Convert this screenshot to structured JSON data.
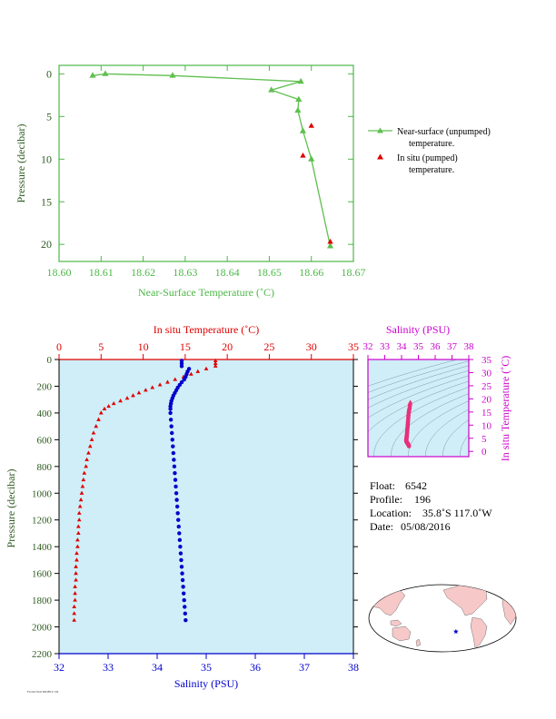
{
  "figure": {
    "footnote": "FLOAT 6542 PROFILE 196"
  },
  "chart_data": [
    {
      "id": "near-surface",
      "type": "scatter",
      "xlabel": "Near-Surface Temperature (˚C)",
      "ylabel": "Pressure (decibar)",
      "xlim": [
        18.6,
        18.67
      ],
      "ylim": [
        22,
        -1
      ],
      "xticks": [
        18.6,
        18.61,
        18.62,
        18.63,
        18.64,
        18.65,
        18.66,
        18.67
      ],
      "xtick_labels": [
        "18.60",
        "18.61",
        "18.62",
        "18.63",
        "18.64",
        "18.65",
        "18.66",
        "18.67"
      ],
      "yticks": [
        0,
        5,
        10,
        15,
        20
      ],
      "ytick_labels": [
        "0",
        "5",
        "10",
        "15",
        "20"
      ],
      "colors": {
        "axis": "#4db848",
        "unpumped": "#5fbf4f",
        "pumped": "#e00000",
        "ylabel": "#2d5a1e"
      },
      "series": [
        {
          "name": "Near-surface (unpumped)",
          "name2": "temperature.",
          "marker": "triangle-line",
          "x": [
            18.608,
            18.611,
            18.627,
            18.6575,
            18.6505,
            18.657,
            18.6568,
            18.658,
            18.66,
            18.6645
          ],
          "y": [
            0.2,
            0.0,
            0.2,
            0.9,
            1.9,
            3.0,
            4.3,
            6.7,
            10.0,
            20.2
          ]
        },
        {
          "name": "In situ (pumped)",
          "name2": "temperature.",
          "marker": "triangle",
          "x": [
            18.66,
            18.658,
            18.6645
          ],
          "y": [
            6.1,
            9.6,
            19.7
          ]
        }
      ]
    },
    {
      "id": "profile",
      "type": "scatter",
      "xlabel": "Salinity (PSU)",
      "x2label": "In situ Temperature (˚C)",
      "ylabel": "Pressure (decibar)",
      "xlim": [
        32,
        38
      ],
      "x2lim": [
        0,
        35
      ],
      "ylim": [
        2200,
        0
      ],
      "xticks": [
        32,
        33,
        34,
        35,
        36,
        37,
        38
      ],
      "xtick_labels": [
        "32",
        "33",
        "34",
        "35",
        "36",
        "37",
        "38"
      ],
      "x2ticks": [
        0,
        5,
        10,
        15,
        20,
        25,
        30,
        35
      ],
      "x2tick_labels": [
        "0",
        "5",
        "10",
        "15",
        "20",
        "25",
        "30",
        "35"
      ],
      "yticks": [
        0,
        200,
        400,
        600,
        800,
        1000,
        1200,
        1400,
        1600,
        1800,
        2000,
        2200
      ],
      "ytick_labels": [
        "0",
        "200",
        "400",
        "600",
        "800",
        "1000",
        "1200",
        "1400",
        "1600",
        "1800",
        "2000",
        "2200"
      ],
      "colors": {
        "background": "#cfeef8",
        "temperature": "#e00000",
        "salinity": "#0000cc",
        "frame": "#000000",
        "ylabel": "#2d5a1e"
      },
      "temperature": {
        "p": [
          10,
          30,
          50,
          70,
          90,
          110,
          130,
          150,
          170,
          190,
          210,
          230,
          250,
          270,
          290,
          310,
          330,
          350,
          370,
          400,
          450,
          500,
          550,
          600,
          650,
          700,
          750,
          800,
          850,
          900,
          950,
          1000,
          1050,
          1100,
          1150,
          1200,
          1250,
          1300,
          1350,
          1400,
          1450,
          1500,
          1550,
          1600,
          1650,
          1700,
          1750,
          1800,
          1850,
          1900,
          1950
        ],
        "t": [
          18.6,
          18.6,
          18.6,
          17.5,
          16.5,
          15.7,
          14.8,
          13.8,
          12.9,
          12.0,
          11.1,
          10.3,
          9.5,
          8.8,
          8.1,
          7.3,
          6.5,
          5.9,
          5.4,
          5.0,
          4.7,
          4.4,
          4.1,
          3.9,
          3.7,
          3.5,
          3.3,
          3.2,
          3.0,
          2.9,
          2.8,
          2.7,
          2.6,
          2.5,
          2.4,
          2.4,
          2.3,
          2.3,
          2.2,
          2.2,
          2.1,
          2.1,
          2.0,
          2.0,
          2.0,
          1.9,
          1.9,
          1.9,
          1.8,
          1.8,
          1.8
        ]
      },
      "salinity": {
        "p": [
          10,
          30,
          50,
          70,
          90,
          110,
          130,
          150,
          170,
          190,
          210,
          230,
          250,
          270,
          290,
          310,
          330,
          350,
          370,
          400,
          450,
          500,
          550,
          600,
          650,
          700,
          750,
          800,
          850,
          900,
          950,
          1000,
          1050,
          1100,
          1150,
          1200,
          1250,
          1300,
          1350,
          1400,
          1450,
          1500,
          1550,
          1600,
          1650,
          1700,
          1750,
          1800,
          1850,
          1900,
          1950
        ],
        "s": [
          34.5,
          34.5,
          34.5,
          34.65,
          34.62,
          34.6,
          34.58,
          34.55,
          34.5,
          34.46,
          34.42,
          34.39,
          34.36,
          34.33,
          34.31,
          34.29,
          34.28,
          34.27,
          34.27,
          34.27,
          34.28,
          34.29,
          34.3,
          34.31,
          34.32,
          34.33,
          34.34,
          34.35,
          34.36,
          34.37,
          34.38,
          34.39,
          34.4,
          34.41,
          34.42,
          34.43,
          34.44,
          34.45,
          34.46,
          34.47,
          34.48,
          34.49,
          34.5,
          34.51,
          34.52,
          34.53,
          34.54,
          34.55,
          34.56,
          34.57,
          34.58
        ]
      }
    },
    {
      "id": "ts-diagram",
      "type": "scatter",
      "xlabel": "Salinity (PSU)",
      "ylabel": "In situ Temperature (˚C)",
      "xlim": [
        32,
        38
      ],
      "ylim": [
        -2,
        35
      ],
      "xticks": [
        32,
        33,
        34,
        35,
        36,
        37,
        38
      ],
      "xtick_labels": [
        "32",
        "33",
        "34",
        "35",
        "36",
        "37",
        "38"
      ],
      "yticks": [
        0,
        5,
        10,
        15,
        20,
        25,
        30,
        35
      ],
      "ytick_labels": [
        "0",
        "5",
        "10",
        "15",
        "20",
        "25",
        "30",
        "35"
      ],
      "colors": {
        "axis": "#cc00cc",
        "points": "#e8307a",
        "contours": "#7f98a8",
        "background": "#cfeef8"
      },
      "s": [
        34.52,
        34.5,
        34.48,
        34.45,
        34.43,
        34.41,
        34.4,
        34.39,
        34.38,
        34.37,
        34.36,
        34.35,
        34.34,
        34.33,
        34.32,
        34.31,
        34.3,
        34.29,
        34.29,
        34.28,
        34.28,
        34.29,
        34.3,
        34.31,
        34.33,
        34.35,
        34.38,
        34.4,
        34.42,
        34.44
      ],
      "t": [
        18.6,
        17.5,
        16.5,
        15.7,
        14.8,
        13.8,
        12.9,
        12.0,
        11.1,
        10.3,
        9.5,
        8.8,
        8.1,
        7.3,
        6.5,
        5.9,
        5.4,
        5.0,
        4.7,
        4.4,
        4.1,
        3.9,
        3.7,
        3.5,
        3.3,
        3.1,
        2.9,
        2.6,
        2.3,
        2.0
      ]
    }
  ],
  "info": {
    "float_label": "Float:",
    "float_value": "6542",
    "profile_label": "Profile:",
    "profile_value": "196",
    "location_label": "Location:",
    "location_value": "35.8˚S 117.0˚W",
    "date_label": "Date:",
    "date_value": "05/08/2016"
  },
  "map": {
    "colors": {
      "ocean": "#ffffff",
      "land": "#f6c8c8",
      "outline": "#000000",
      "marker": "#0000cc"
    },
    "float_lon": -117.0,
    "float_lat": -35.8
  }
}
